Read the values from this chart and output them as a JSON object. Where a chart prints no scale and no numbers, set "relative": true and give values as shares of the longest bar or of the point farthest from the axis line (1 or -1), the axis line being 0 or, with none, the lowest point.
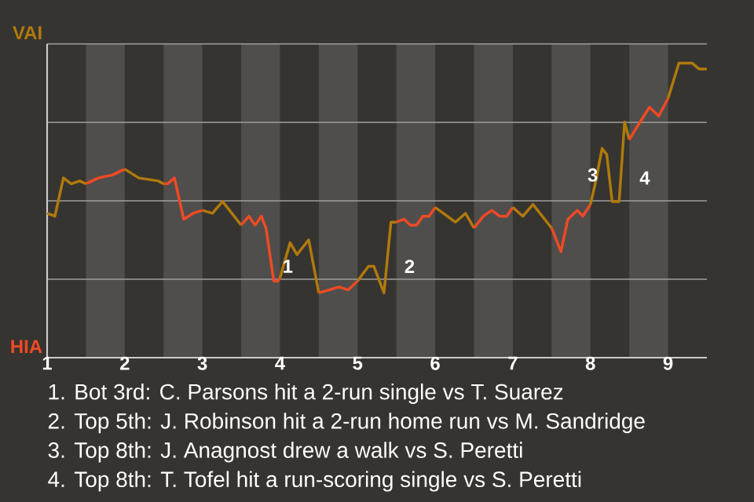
{
  "chart_data": {
    "type": "line",
    "relative": true,
    "series": [
      {
        "color": "#b07a0c",
        "x": [
          1,
          1.1,
          1.21,
          1.31,
          1.42,
          1.5
        ],
        "values": [
          0.49,
          0.48,
          0.61,
          0.59,
          0.6,
          0.59
        ]
      },
      {
        "color": "#f04a24",
        "x": [
          1.5,
          1.66,
          1.84,
          2
        ],
        "values": [
          0.59,
          0.61,
          0.62,
          0.64
        ]
      },
      {
        "color": "#b07a0c",
        "x": [
          2,
          2.18,
          2.43,
          2.5
        ],
        "values": [
          0.64,
          0.61,
          0.6,
          0.59
        ]
      },
      {
        "color": "#f04a24",
        "x": [
          2.5,
          2.55,
          2.64,
          2.76,
          2.88,
          3
        ],
        "values": [
          0.59,
          0.59,
          0.61,
          0.47,
          0.49,
          0.5
        ]
      },
      {
        "color": "#b07a0c",
        "x": [
          3,
          3.13,
          3.26,
          3.5
        ],
        "values": [
          0.5,
          0.49,
          0.53,
          0.45
        ]
      },
      {
        "color": "#f04a24",
        "x": [
          3.5,
          3.6,
          3.68,
          3.76,
          3.82,
          3.92,
          3.97,
          4
        ],
        "values": [
          0.45,
          0.48,
          0.45,
          0.48,
          0.44,
          0.26,
          0.26,
          0.27
        ]
      },
      {
        "color": "#b07a0c",
        "x": [
          4,
          4.13,
          4.22,
          4.37,
          4.5
        ],
        "values": [
          0.27,
          0.39,
          0.35,
          0.4,
          0.22
        ]
      },
      {
        "color": "#f04a24",
        "x": [
          4.5,
          4.76,
          4.88,
          5
        ],
        "values": [
          0.22,
          0.24,
          0.23,
          0.26
        ]
      },
      {
        "color": "#b07a0c",
        "x": [
          5,
          5.14,
          5.21,
          5.34,
          5.43,
          5.5
        ],
        "values": [
          0.26,
          0.31,
          0.31,
          0.22,
          0.46,
          0.46
        ]
      },
      {
        "color": "#f04a24",
        "x": [
          5.5,
          5.6,
          5.68,
          5.76,
          5.84,
          5.92,
          6
        ],
        "values": [
          0.46,
          0.47,
          0.45,
          0.45,
          0.48,
          0.48,
          0.51
        ]
      },
      {
        "color": "#b07a0c",
        "x": [
          6,
          6.26,
          6.39,
          6.5
        ],
        "values": [
          0.51,
          0.46,
          0.49,
          0.44
        ]
      },
      {
        "color": "#f04a24",
        "x": [
          6.5,
          6.62,
          6.73,
          6.83,
          6.92,
          7
        ],
        "values": [
          0.44,
          0.48,
          0.5,
          0.48,
          0.48,
          0.51
        ]
      },
      {
        "color": "#b07a0c",
        "x": [
          7,
          7.13,
          7.26,
          7.5
        ],
        "values": [
          0.51,
          0.48,
          0.52,
          0.44
        ]
      },
      {
        "color": "#f04a24",
        "x": [
          7.5,
          7.62,
          7.71,
          7.83,
          7.9,
          8
        ],
        "values": [
          0.44,
          0.36,
          0.47,
          0.5,
          0.48,
          0.52
        ]
      },
      {
        "color": "#b07a0c",
        "x": [
          8,
          8.07,
          8.15,
          8.21,
          8.28,
          8.37,
          8.44,
          8.5
        ],
        "values": [
          0.52,
          0.6,
          0.71,
          0.69,
          0.53,
          0.53,
          0.8,
          0.74
        ]
      },
      {
        "color": "#f04a24",
        "x": [
          8.5,
          8.64,
          8.76,
          8.88,
          9
        ],
        "values": [
          0.74,
          0.8,
          0.85,
          0.82,
          0.88
        ]
      },
      {
        "color": "#b07a0c",
        "x": [
          9,
          9.14,
          9.31,
          9.4,
          9.5
        ],
        "values": [
          0.88,
          1,
          1,
          0.98,
          0.98
        ]
      }
    ],
    "xlim": [
      1,
      9.5
    ],
    "xticks": [
      {
        "value": 1,
        "label": "1"
      },
      {
        "value": 2,
        "label": "2"
      },
      {
        "value": 3,
        "label": "3"
      },
      {
        "value": 4,
        "label": "4"
      },
      {
        "value": 5,
        "label": "5"
      },
      {
        "value": 6,
        "label": "6"
      },
      {
        "value": 7,
        "label": "7"
      },
      {
        "value": 8,
        "label": "8"
      },
      {
        "value": 9,
        "label": "9"
      }
    ],
    "grid": "y",
    "bands": [
      {
        "axis": "x",
        "from": 1.5,
        "to": 2,
        "color": "#4f4e4c"
      },
      {
        "axis": "x",
        "from": 2.5,
        "to": 3,
        "color": "#4f4e4c"
      },
      {
        "axis": "x",
        "from": 3.5,
        "to": 4,
        "color": "#4f4e4c"
      },
      {
        "axis": "x",
        "from": 4.5,
        "to": 5,
        "color": "#4f4e4c"
      },
      {
        "axis": "x",
        "from": 5.5,
        "to": 6,
        "color": "#4f4e4c"
      },
      {
        "axis": "x",
        "from": 6.5,
        "to": 7,
        "color": "#4f4e4c"
      },
      {
        "axis": "x",
        "from": 7.5,
        "to": 8,
        "color": "#4f4e4c"
      },
      {
        "axis": "x",
        "from": 8.5,
        "to": 9,
        "color": "#4f4e4c"
      }
    ],
    "annotations": [
      "VAI",
      "HIA",
      {
        "text": "1",
        "x": 4.0,
        "y": 0.31
      },
      {
        "text": "2",
        "x": 5.57,
        "y": 0.31
      },
      {
        "text": "3",
        "x": 7.93,
        "y": 0.62
      },
      {
        "text": "4",
        "x": 8.6,
        "y": 0.61
      },
      "1. Bot 3rd: C. Parsons hit a 2-run single vs T. Suarez",
      "2. Top 5th: J. Robinson hit a 2-run home run vs M. Sandridge",
      "3. Top 8th: J. Anagnost drew a walk vs S. Peretti",
      "4. Top 8th: T. Tofel hit a run-scoring single vs S. Peretti"
    ]
  }
}
